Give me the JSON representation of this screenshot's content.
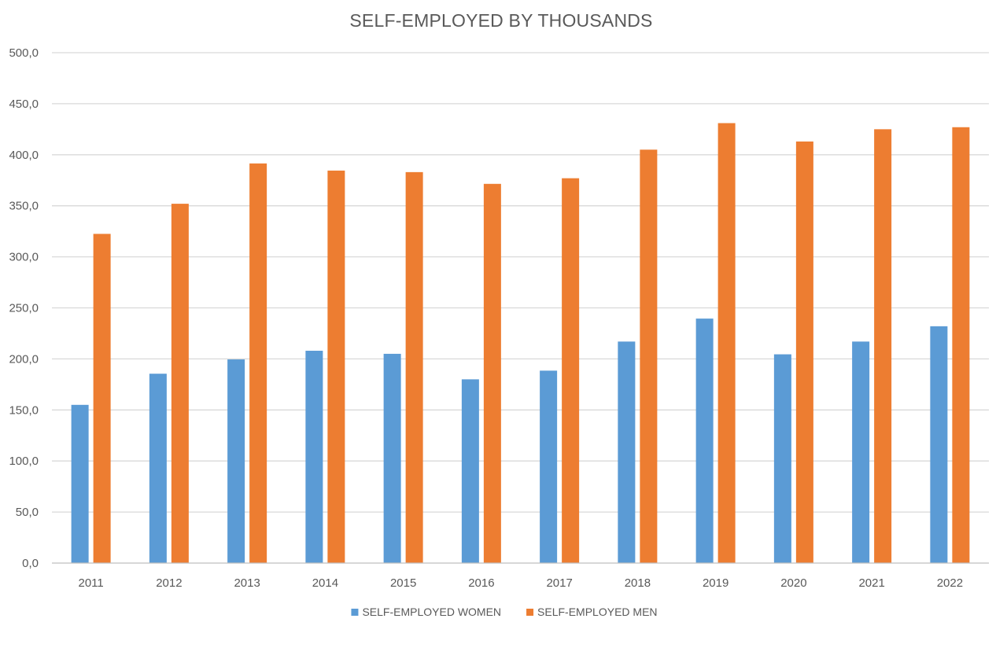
{
  "chart_data": {
    "type": "bar",
    "title": "SELF-EMPLOYED BY THOUSANDS",
    "xlabel": "",
    "ylabel": "",
    "categories": [
      "2011",
      "2012",
      "2013",
      "2014",
      "2015",
      "2016",
      "2017",
      "2018",
      "2019",
      "2020",
      "2021",
      "2022"
    ],
    "series": [
      {
        "name": "SELF-EMPLOYED WOMEN",
        "color": "#5b9bd5",
        "values": [
          155.0,
          185.5,
          199.5,
          208.0,
          205.0,
          180.0,
          188.5,
          217.0,
          239.5,
          204.5,
          217.0,
          232.0
        ]
      },
      {
        "name": "SELF-EMPLOYED MEN",
        "color": "#ed7d31",
        "values": [
          322.5,
          352.0,
          391.5,
          384.5,
          383.0,
          371.5,
          377.0,
          405.0,
          431.0,
          413.0,
          425.0,
          427.0
        ]
      }
    ],
    "ylim": [
      0,
      500
    ],
    "yticks": [
      0,
      50,
      100,
      150,
      200,
      250,
      300,
      350,
      400,
      450,
      500
    ],
    "ytick_labels": [
      "0,0",
      "50,0",
      "100,0",
      "150,0",
      "200,0",
      "250,0",
      "300,0",
      "350,0",
      "400,0",
      "450,0",
      "500,0"
    ],
    "grid": true,
    "legend_position": "bottom"
  }
}
